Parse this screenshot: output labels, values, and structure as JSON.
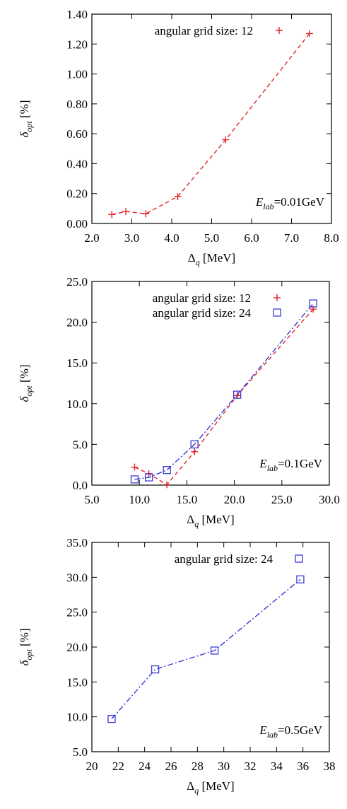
{
  "chart_data": [
    {
      "type": "line",
      "x": [
        2.5,
        2.85,
        3.35,
        4.15,
        5.35,
        7.45
      ],
      "series": [
        {
          "name": "angular grid size: 12",
          "color": "#e3262c",
          "marker": "plus",
          "line_style": "dashed",
          "values": [
            0.06,
            0.08,
            0.065,
            0.18,
            0.56,
            1.27
          ]
        }
      ],
      "xlim": [
        2,
        8
      ],
      "xticks": [
        {
          "value": 2,
          "label": "2.0"
        },
        {
          "value": 3,
          "label": "3.0"
        },
        {
          "value": 4,
          "label": "4.0"
        },
        {
          "value": 5,
          "label": "5.0"
        },
        {
          "value": 6,
          "label": "6.0"
        },
        {
          "value": 7,
          "label": "7.0"
        },
        {
          "value": 8,
          "label": "8.0"
        }
      ],
      "ylim": [
        0,
        1.4
      ],
      "yticks": [
        {
          "value": 0,
          "label": "0.00"
        },
        {
          "value": 0.2,
          "label": "0.20"
        },
        {
          "value": 0.4,
          "label": "0.40"
        },
        {
          "value": 0.6,
          "label": "0.60"
        },
        {
          "value": 0.8,
          "label": "0.80"
        },
        {
          "value": 1.0,
          "label": "1.00"
        },
        {
          "value": 1.2,
          "label": "1.20"
        },
        {
          "value": 1.4,
          "label": "1.40"
        }
      ],
      "x_label": {
        "symbol": "Δ",
        "sub": "q",
        "rest": " [MeV]"
      },
      "y_label": {
        "symbol": "δ",
        "sub": "opt",
        "rest": " [%]"
      },
      "annotation": {
        "symbol": "E",
        "sub": "lab",
        "rest": "=0.01GeV"
      },
      "legend": "top"
    },
    {
      "type": "line",
      "x": [
        9.5,
        11.0,
        12.9,
        15.8,
        20.3,
        28.3
      ],
      "series": [
        {
          "name": "angular grid size: 12",
          "color": "#e3262c",
          "marker": "plus",
          "line_style": "dashed",
          "values": [
            2.2,
            1.4,
            0.05,
            4.1,
            11.0,
            21.6
          ]
        },
        {
          "name": "angular grid size: 24",
          "color": "#3a3ad8",
          "marker": "square",
          "line_style": "dashdot",
          "values": [
            0.7,
            0.95,
            1.85,
            5.0,
            11.1,
            22.3
          ]
        }
      ],
      "xlim": [
        5,
        30
      ],
      "xticks": [
        {
          "value": 5,
          "label": "5.0"
        },
        {
          "value": 10,
          "label": "10.0"
        },
        {
          "value": 15,
          "label": "15.0"
        },
        {
          "value": 20,
          "label": "20.0"
        },
        {
          "value": 25,
          "label": "25.0"
        },
        {
          "value": 30,
          "label": "30.0"
        }
      ],
      "ylim": [
        0,
        25
      ],
      "yticks": [
        {
          "value": 0,
          "label": "0.0"
        },
        {
          "value": 5,
          "label": "5.0"
        },
        {
          "value": 10,
          "label": "10.0"
        },
        {
          "value": 15,
          "label": "15.0"
        },
        {
          "value": 20,
          "label": "20.0"
        },
        {
          "value": 25,
          "label": "25.0"
        }
      ],
      "x_label": {
        "symbol": "Δ",
        "sub": "q",
        "rest": " [MeV]"
      },
      "y_label": {
        "symbol": "δ",
        "sub": "opt",
        "rest": " [%]"
      },
      "annotation": {
        "symbol": "E",
        "sub": "lab",
        "rest": "=0.1GeV"
      },
      "legend": "top"
    },
    {
      "type": "line",
      "x": [
        21.5,
        24.8,
        29.3,
        35.8
      ],
      "series": [
        {
          "name": "angular grid size: 24",
          "color": "#3a3ad8",
          "marker": "square",
          "line_style": "dashdot",
          "values": [
            9.7,
            16.8,
            19.5,
            29.7
          ]
        }
      ],
      "xlim": [
        20,
        38
      ],
      "xticks": [
        20,
        22,
        24,
        26,
        28,
        30,
        32,
        34,
        36,
        38
      ],
      "ylim": [
        5,
        35
      ],
      "yticks": [
        {
          "value": 5,
          "label": "5.0"
        },
        {
          "value": 10,
          "label": "10.0"
        },
        {
          "value": 15,
          "label": "15.0"
        },
        {
          "value": 20,
          "label": "20.0"
        },
        {
          "value": 25,
          "label": "25.0"
        },
        {
          "value": 30,
          "label": "30.0"
        },
        {
          "value": 35,
          "label": "35.0"
        }
      ],
      "x_label": {
        "symbol": "Δ",
        "sub": "q",
        "rest": " [MeV]"
      },
      "y_label": {
        "symbol": "δ",
        "sub": "opt",
        "rest": " [%]"
      },
      "annotation": {
        "symbol": "E",
        "sub": "lab",
        "rest": "=0.5GeV"
      },
      "legend": "top"
    }
  ]
}
